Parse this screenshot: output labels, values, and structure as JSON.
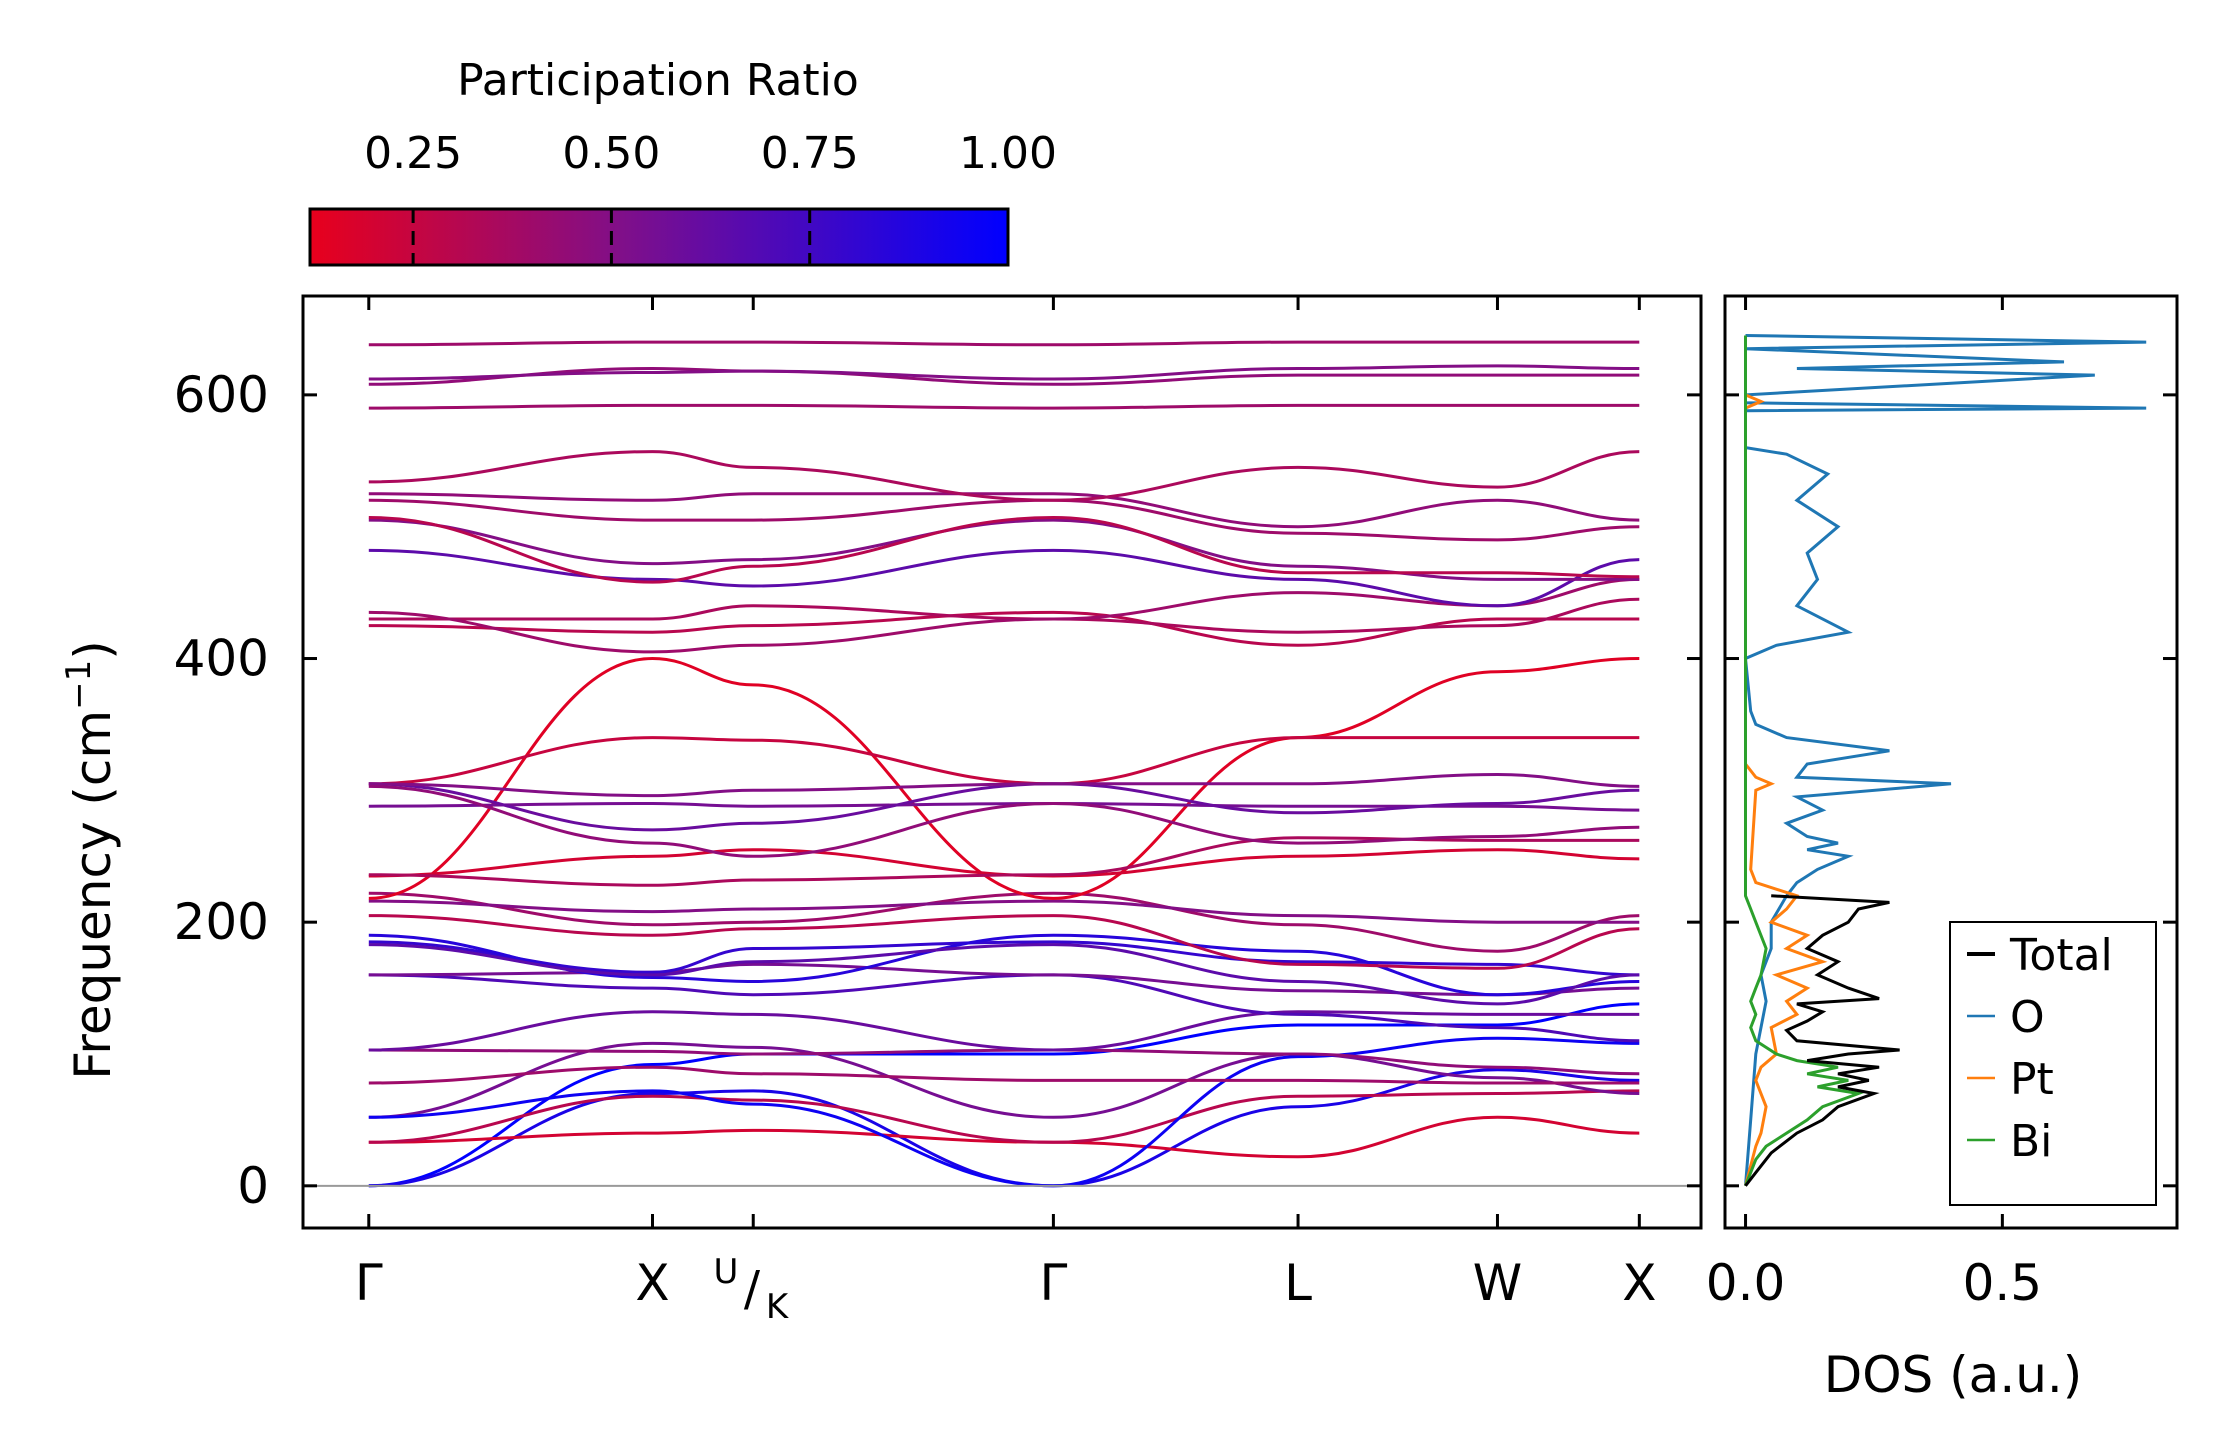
{
  "chart_data": [
    {
      "type": "line",
      "subtype": "phonon-band-structure",
      "ylabel_main": "Frequency (cm",
      "ylabel_exp": "−1",
      "ylabel_close": ")",
      "ylim": [
        -32,
        675
      ],
      "yticks": [
        0,
        200,
        400,
        600
      ],
      "yticklabels": [
        "0",
        "200",
        "400",
        "600"
      ],
      "kpath_positions": [
        0,
        1.38,
        1.87,
        3.33,
        4.52,
        5.49,
        6.18
      ],
      "xlim": [
        -0.32,
        6.48
      ],
      "xticklabels": [
        "Γ",
        "X",
        "Γ",
        "L",
        "W",
        "X"
      ],
      "xtick_uk": {
        "upper": "U",
        "slash": "/",
        "lower": "K"
      },
      "colorbar": {
        "title": "Participation Ratio",
        "range": [
          0.12,
          1.0
        ],
        "ticks": [
          0.25,
          0.5,
          0.75,
          1.0
        ],
        "ticklabels": [
          "0.25",
          "0.50",
          "0.75",
          "1.00"
        ],
        "color_low": "#e8001c",
        "color_mid": "#7f0f8a",
        "color_high": "#0000ff"
      },
      "bands": [
        {
          "y": [
            0,
            92,
            100,
            100,
            122,
            122,
            138
          ],
          "pr": 1.0
        },
        {
          "y": [
            0,
            70,
            72,
            0,
            60,
            88,
            80
          ],
          "pr": 0.9
        },
        {
          "y": [
            33,
            40,
            42,
            33,
            22,
            52,
            40
          ],
          "pr": 0.2
        },
        {
          "y": [
            33,
            68,
            65,
            33,
            68,
            70,
            72
          ],
          "pr": 0.3
        },
        {
          "y": [
            52,
            108,
            105,
            52,
            100,
            82,
            70
          ],
          "pr": 0.55
        },
        {
          "y": [
            52,
            72,
            62,
            0,
            98,
            112,
            108
          ],
          "pr": 0.95
        },
        {
          "y": [
            78,
            90,
            85,
            80,
            80,
            78,
            78
          ],
          "pr": 0.4
        },
        {
          "y": [
            103,
            102,
            100,
            103,
            100,
            90,
            85
          ],
          "pr": 0.45
        },
        {
          "y": [
            103,
            132,
            130,
            103,
            132,
            130,
            130
          ],
          "pr": 0.6
        },
        {
          "y": [
            160,
            150,
            145,
            160,
            130,
            120,
            110
          ],
          "pr": 0.7
        },
        {
          "y": [
            160,
            162,
            168,
            160,
            148,
            145,
            150
          ],
          "pr": 0.55
        },
        {
          "y": [
            185,
            162,
            180,
            185,
            170,
            168,
            160
          ],
          "pr": 0.8
        },
        {
          "y": [
            190,
            158,
            155,
            190,
            178,
            145,
            155
          ],
          "pr": 0.85
        },
        {
          "y": [
            183,
            160,
            170,
            183,
            155,
            138,
            160
          ],
          "pr": 0.65
        },
        {
          "y": [
            205,
            190,
            195,
            205,
            168,
            165,
            195
          ],
          "pr": 0.3
        },
        {
          "y": [
            222,
            198,
            200,
            222,
            198,
            178,
            205
          ],
          "pr": 0.4
        },
        {
          "y": [
            216,
            208,
            210,
            216,
            205,
            200,
            200
          ],
          "pr": 0.5
        },
        {
          "y": [
            218,
            400,
            380,
            218,
            340,
            390,
            400
          ],
          "pr": 0.15
        },
        {
          "y": [
            235,
            250,
            255,
            235,
            250,
            255,
            248
          ],
          "pr": 0.2
        },
        {
          "y": [
            236,
            228,
            232,
            236,
            264,
            262,
            262
          ],
          "pr": 0.35
        },
        {
          "y": [
            288,
            290,
            288,
            290,
            288,
            288,
            285
          ],
          "pr": 0.55
        },
        {
          "y": [
            305,
            340,
            338,
            305,
            340,
            340,
            340
          ],
          "pr": 0.25
        },
        {
          "y": [
            305,
            270,
            275,
            305,
            283,
            290,
            300
          ],
          "pr": 0.6
        },
        {
          "y": [
            305,
            296,
            300,
            305,
            305,
            312,
            303
          ],
          "pr": 0.5
        },
        {
          "y": [
            303,
            260,
            250,
            290,
            260,
            265,
            272
          ],
          "pr": 0.45
        },
        {
          "y": [
            425,
            420,
            425,
            435,
            410,
            430,
            430
          ],
          "pr": 0.3
        },
        {
          "y": [
            430,
            430,
            440,
            430,
            420,
            425,
            445
          ],
          "pr": 0.35
        },
        {
          "y": [
            435,
            405,
            410,
            430,
            450,
            440,
            460
          ],
          "pr": 0.4
        },
        {
          "y": [
            482,
            460,
            455,
            482,
            460,
            440,
            475
          ],
          "pr": 0.65
        },
        {
          "y": [
            505,
            472,
            475,
            505,
            470,
            460,
            460
          ],
          "pr": 0.5
        },
        {
          "y": [
            507,
            458,
            470,
            507,
            465,
            465,
            462
          ],
          "pr": 0.3
        },
        {
          "y": [
            520,
            505,
            505,
            520,
            495,
            490,
            500
          ],
          "pr": 0.4
        },
        {
          "y": [
            525,
            520,
            525,
            525,
            500,
            520,
            505
          ],
          "pr": 0.45
        },
        {
          "y": [
            534,
            557,
            545,
            520,
            545,
            530,
            557
          ],
          "pr": 0.35
        },
        {
          "y": [
            590,
            592,
            592,
            590,
            592,
            592,
            592
          ],
          "pr": 0.4
        },
        {
          "y": [
            608,
            620,
            618,
            608,
            615,
            615,
            615
          ],
          "pr": 0.45
        },
        {
          "y": [
            612,
            617,
            618,
            612,
            620,
            622,
            620
          ],
          "pr": 0.5
        },
        {
          "y": [
            638,
            640,
            640,
            638,
            640,
            640,
            640
          ],
          "pr": 0.4
        }
      ],
      "zero_line": 0
    },
    {
      "type": "line",
      "subtype": "density-of-states",
      "xlabel": "DOS (a.u.)",
      "xlim": [
        -0.04,
        0.84
      ],
      "xticks": [
        0.0,
        0.5
      ],
      "xticklabels": [
        "0.0",
        "0.5"
      ],
      "ylim": [
        -32,
        675
      ],
      "legend_position": "lower-right",
      "series": [
        {
          "name": "Total",
          "color": "#000000",
          "f": [
            0,
            10,
            25,
            40,
            50,
            60,
            70,
            75,
            80,
            85,
            90,
            95,
            100,
            103,
            110,
            118,
            125,
            132,
            138,
            142,
            150,
            160,
            170,
            180,
            190,
            200,
            210,
            215,
            220
          ],
          "dos": [
            0,
            0.02,
            0.05,
            0.1,
            0.15,
            0.18,
            0.25,
            0.18,
            0.24,
            0.18,
            0.26,
            0.12,
            0.2,
            0.3,
            0.1,
            0.08,
            0.12,
            0.15,
            0.1,
            0.26,
            0.2,
            0.14,
            0.18,
            0.12,
            0.15,
            0.2,
            0.22,
            0.28,
            0.05
          ]
        },
        {
          "name": "O",
          "color": "#1f77b4",
          "f": [
            0,
            50,
            100,
            140,
            160,
            180,
            200,
            220,
            230,
            240,
            250,
            255,
            260,
            265,
            275,
            285,
            295,
            305,
            310,
            320,
            330,
            340,
            350,
            360,
            400,
            410,
            420,
            440,
            460,
            480,
            500,
            520,
            540,
            555,
            560,
            588,
            590,
            594,
            600,
            615,
            620,
            625,
            635,
            640,
            645
          ],
          "dos": [
            0,
            0.01,
            0.02,
            0.04,
            0.03,
            0.05,
            0.05,
            0.08,
            0.1,
            0.14,
            0.2,
            0.12,
            0.18,
            0.12,
            0.08,
            0.15,
            0.1,
            0.4,
            0.1,
            0.12,
            0.28,
            0.08,
            0.02,
            0.01,
            0.0,
            0.06,
            0.2,
            0.1,
            0.14,
            0.12,
            0.18,
            0.1,
            0.16,
            0.08,
            0.0,
            0.0,
            0.78,
            0.0,
            0.0,
            0.68,
            0.1,
            0.62,
            0.0,
            0.78,
            0.0
          ]
        },
        {
          "name": "Pt",
          "color": "#ff7f0e",
          "f": [
            0,
            30,
            40,
            60,
            80,
            90,
            100,
            120,
            130,
            140,
            150,
            160,
            170,
            180,
            190,
            200,
            210,
            220,
            230,
            240,
            300,
            305,
            310,
            320,
            400,
            590,
            595,
            600
          ],
          "dos": [
            0,
            0.02,
            0.03,
            0.04,
            0.02,
            0.03,
            0.06,
            0.05,
            0.1,
            0.08,
            0.12,
            0.06,
            0.15,
            0.08,
            0.12,
            0.05,
            0.08,
            0.1,
            0.02,
            0.01,
            0.02,
            0.05,
            0.02,
            0.0,
            0.0,
            0.0,
            0.03,
            0.0
          ]
        },
        {
          "name": "Bi",
          "color": "#2ca02c",
          "f": [
            0,
            20,
            30,
            40,
            50,
            60,
            70,
            75,
            80,
            85,
            90,
            95,
            100,
            110,
            120,
            130,
            140,
            150,
            160,
            180,
            200,
            210,
            220,
            230,
            645
          ],
          "dos": [
            0,
            0.02,
            0.04,
            0.08,
            0.12,
            0.15,
            0.22,
            0.14,
            0.2,
            0.12,
            0.18,
            0.1,
            0.06,
            0.02,
            0.01,
            0.02,
            0.01,
            0.02,
            0.03,
            0.04,
            0.02,
            0.01,
            0.0,
            0.0,
            0.0
          ]
        }
      ]
    }
  ]
}
